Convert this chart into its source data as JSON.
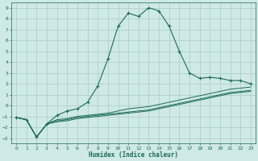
{
  "xlabel": "Humidex (Indice chaleur)",
  "ylabel": "",
  "background_color": "#cfe8e8",
  "grid_color": "#b0d0d0",
  "line_color": "#1a6b5a",
  "xlim": [
    -0.5,
    23.5
  ],
  "ylim": [
    -3.5,
    9.5
  ],
  "xticks": [
    0,
    1,
    2,
    3,
    4,
    5,
    6,
    7,
    8,
    9,
    10,
    11,
    12,
    13,
    14,
    15,
    16,
    17,
    18,
    19,
    20,
    21,
    22,
    23
  ],
  "yticks": [
    -3,
    -2,
    -1,
    0,
    1,
    2,
    3,
    4,
    5,
    6,
    7,
    8,
    9
  ],
  "series1_x": [
    0,
    1,
    2,
    3,
    4,
    5,
    6,
    7,
    8,
    9,
    10,
    11,
    12,
    13,
    14,
    15,
    16,
    17,
    18,
    19,
    20,
    21,
    22,
    23
  ],
  "series1_y": [
    -1.1,
    -1.3,
    -2.9,
    -1.7,
    -0.9,
    -0.5,
    -0.3,
    0.3,
    1.8,
    4.3,
    7.3,
    8.5,
    8.2,
    9.0,
    8.7,
    7.3,
    5.0,
    3.0,
    2.5,
    2.6,
    2.5,
    2.3,
    2.3,
    2.0
  ],
  "series2_x": [
    0,
    1,
    2,
    3,
    4,
    5,
    6,
    7,
    8,
    9,
    10,
    11,
    12,
    13,
    14,
    15,
    16,
    17,
    18,
    19,
    20,
    21,
    22,
    23
  ],
  "series2_y": [
    -1.1,
    -1.3,
    -2.9,
    -1.7,
    -1.3,
    -1.2,
    -1.0,
    -0.9,
    -0.8,
    -0.7,
    -0.5,
    -0.3,
    -0.2,
    -0.1,
    0.1,
    0.3,
    0.5,
    0.7,
    0.9,
    1.1,
    1.3,
    1.5,
    1.6,
    1.7
  ],
  "series3_x": [
    0,
    1,
    2,
    3,
    4,
    5,
    6,
    7,
    8,
    9,
    10,
    11,
    12,
    13,
    14,
    15,
    16,
    17,
    18,
    19,
    20,
    21,
    22,
    23
  ],
  "series3_y": [
    -1.1,
    -1.3,
    -2.9,
    -1.7,
    -1.4,
    -1.3,
    -1.1,
    -1.0,
    -0.9,
    -0.8,
    -0.7,
    -0.6,
    -0.5,
    -0.4,
    -0.2,
    0.0,
    0.2,
    0.4,
    0.6,
    0.8,
    1.0,
    1.2,
    1.3,
    1.4
  ],
  "series4_x": [
    0,
    1,
    2,
    3,
    4,
    5,
    6,
    7,
    8,
    9,
    10,
    11,
    12,
    13,
    14,
    15,
    16,
    17,
    18,
    19,
    20,
    21,
    22,
    23
  ],
  "series4_y": [
    -1.1,
    -1.3,
    -2.9,
    -1.7,
    -1.5,
    -1.4,
    -1.2,
    -1.1,
    -1.0,
    -0.9,
    -0.8,
    -0.7,
    -0.6,
    -0.5,
    -0.3,
    -0.1,
    0.1,
    0.3,
    0.5,
    0.7,
    0.9,
    1.1,
    1.2,
    1.3
  ]
}
